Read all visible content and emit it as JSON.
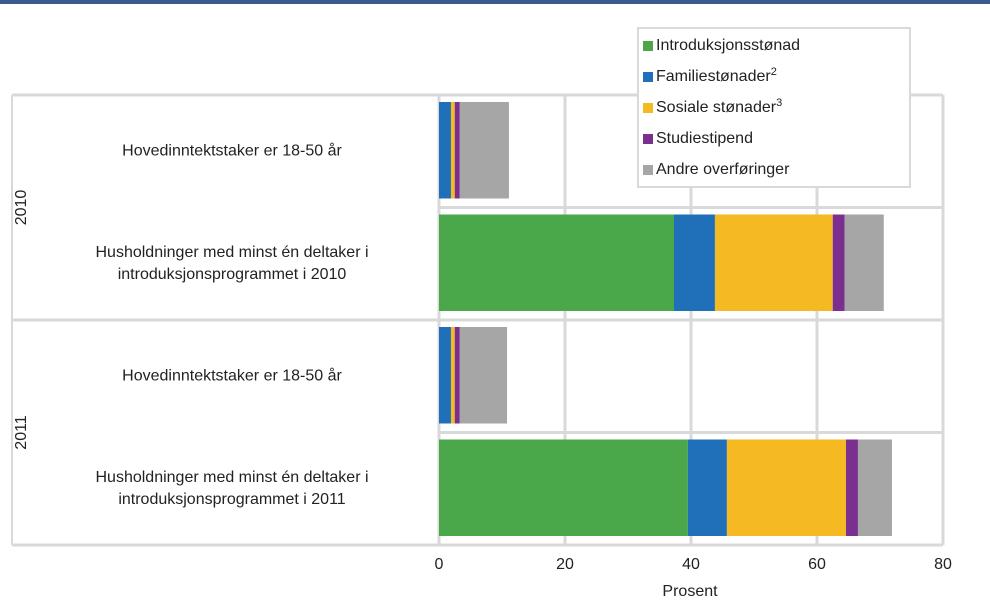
{
  "chart_data": {
    "type": "stacked-barh",
    "xlabel": "Prosent",
    "groups": [
      "2010",
      "2011"
    ],
    "categories": [
      [
        "Hovedinntektstaker er 18-50 år"
      ],
      [
        "Husholdninger med minst én deltaker i",
        "introduksjonsprogrammet i 2010"
      ],
      [
        "Hovedinntektstaker er 18-50 år"
      ],
      [
        "Husholdninger med minst én deltaker i",
        "introduksjonsprogrammet i 2011"
      ]
    ],
    "series": [
      {
        "name": "Introduksjonsstønad",
        "color": "#4aa84a",
        "values": [
          0,
          37.3,
          0,
          39.5
        ]
      },
      {
        "name": "Familiestønader",
        "footnote": "2",
        "color": "#1f6fb9",
        "values": [
          1.9,
          6.5,
          1.9,
          6.2
        ]
      },
      {
        "name": "Sosiale stønader",
        "footnote": "3",
        "color": "#f5b921",
        "values": [
          0.6,
          18.7,
          0.6,
          18.9
        ]
      },
      {
        "name": "Studiestipend",
        "color": "#7b2f8e",
        "values": [
          0.8,
          1.9,
          0.8,
          1.9
        ]
      },
      {
        "name": "Andre overføringer",
        "color": "#a6a6a6",
        "values": [
          7.8,
          6.2,
          7.5,
          5.4
        ]
      }
    ],
    "xlim": [
      0,
      80
    ],
    "xticks": [
      0,
      20,
      40,
      60,
      80
    ],
    "grid": true,
    "legend": "upper right"
  }
}
